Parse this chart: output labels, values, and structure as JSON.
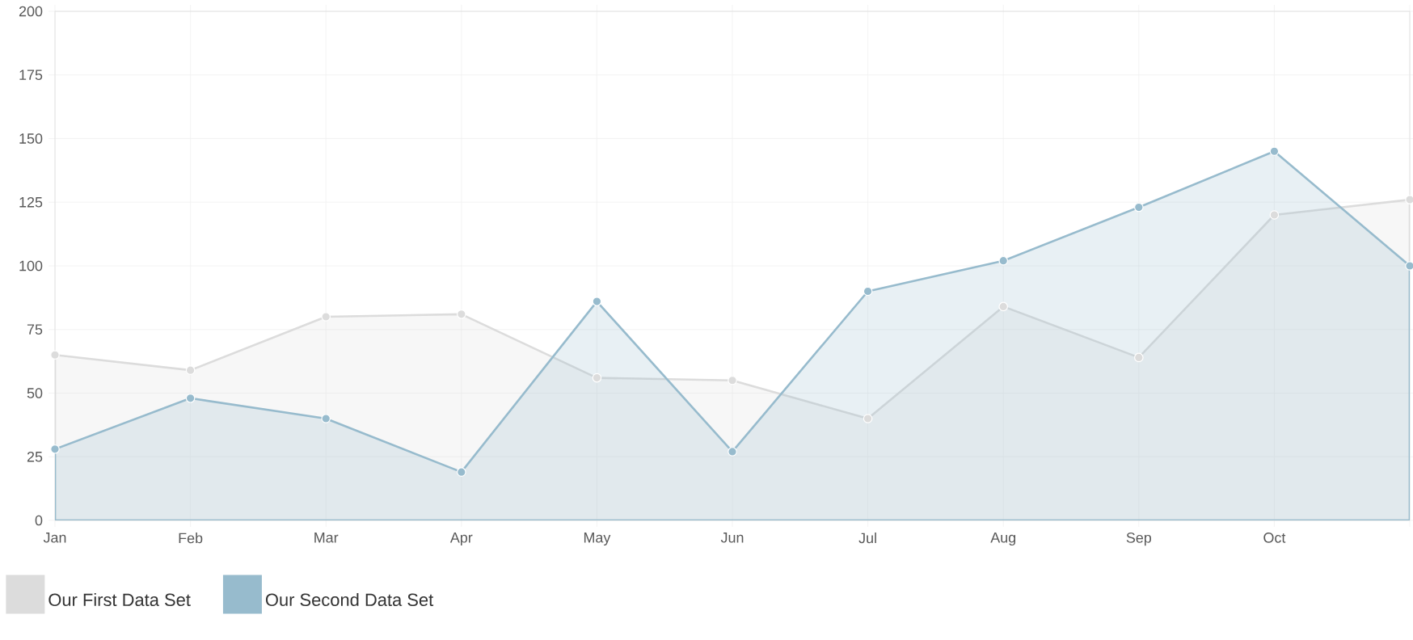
{
  "chart_data": {
    "type": "area",
    "categories": [
      "Jan",
      "Feb",
      "Mar",
      "Apr",
      "May",
      "Jun",
      "Jul",
      "Aug",
      "Sep",
      "Oct",
      null
    ],
    "series": [
      {
        "name": "Our First Data Set",
        "color": "#dcdcdc",
        "values": [
          65,
          59,
          80,
          81,
          56,
          55,
          40,
          84,
          64,
          120,
          126
        ]
      },
      {
        "name": "Our Second Data Set",
        "color": "#97bbcd",
        "values": [
          28,
          48,
          40,
          19,
          86,
          27,
          90,
          102,
          123,
          145,
          100
        ]
      }
    ],
    "ylim": [
      0,
      200
    ],
    "yticks": [
      0,
      25,
      50,
      75,
      100,
      125,
      150,
      175,
      200
    ],
    "grid": true,
    "legend": "bottom",
    "marker": "circle"
  }
}
